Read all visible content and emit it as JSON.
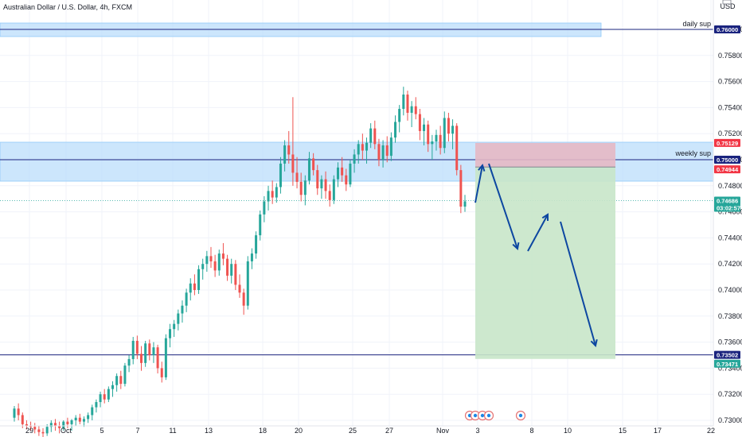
{
  "header": {
    "symbol_title": "Australian Dollar / U.S. Dollar, 4h, FXCM",
    "currency_unit": "USD"
  },
  "chart_data": {
    "type": "candlestick",
    "title": "Australian Dollar / U.S. Dollar, 4h, FXCM",
    "xlabel": "",
    "ylabel": "",
    "ylim": [
      0.7298,
      0.762
    ],
    "grid": true,
    "y_ticks": [
      "0.76000",
      "0.75800",
      "0.75600",
      "0.75400",
      "0.75200",
      "0.75000",
      "0.74800",
      "0.74600",
      "0.74400",
      "0.74200",
      "0.74000",
      "0.73800",
      "0.73600",
      "0.73400",
      "0.73200",
      "0.73000"
    ],
    "x_ticks": [
      "29",
      "Oct",
      "5",
      "7",
      "11",
      "13",
      "18",
      "20",
      "25",
      "27",
      "Nov",
      "3",
      "8",
      "10",
      "15",
      "17",
      "22"
    ],
    "series": [
      {
        "name": "",
        "values": [
          [
            0.7302,
            0.7311,
            0.7299,
            0.7309
          ],
          [
            0.7309,
            0.7313,
            0.73,
            0.7304
          ],
          [
            0.7304,
            0.7306,
            0.7294,
            0.7297
          ],
          [
            0.7297,
            0.73,
            0.7293,
            0.7296
          ],
          [
            0.7296,
            0.7299,
            0.7292,
            0.7295
          ],
          [
            0.7295,
            0.7298,
            0.729,
            0.7293
          ],
          [
            0.7293,
            0.7296,
            0.7288,
            0.7291
          ],
          [
            0.7291,
            0.7294,
            0.7287,
            0.729
          ],
          [
            0.729,
            0.7297,
            0.7288,
            0.7295
          ],
          [
            0.7295,
            0.73,
            0.7291,
            0.7298
          ],
          [
            0.7298,
            0.7301,
            0.7292,
            0.7296
          ],
          [
            0.7296,
            0.7299,
            0.729,
            0.7294
          ],
          [
            0.7294,
            0.73,
            0.7292,
            0.7299
          ],
          [
            0.7299,
            0.7302,
            0.7294,
            0.7297
          ],
          [
            0.7297,
            0.7301,
            0.7292,
            0.73
          ],
          [
            0.73,
            0.7304,
            0.7296,
            0.7302
          ],
          [
            0.7302,
            0.7305,
            0.7297,
            0.7299
          ],
          [
            0.7299,
            0.7303,
            0.7295,
            0.7301
          ],
          [
            0.7301,
            0.7306,
            0.7298,
            0.7304
          ],
          [
            0.7304,
            0.7312,
            0.73,
            0.731
          ],
          [
            0.731,
            0.7316,
            0.7306,
            0.7314
          ],
          [
            0.7314,
            0.7322,
            0.731,
            0.732
          ],
          [
            0.732,
            0.7324,
            0.7313,
            0.7316
          ],
          [
            0.7316,
            0.7326,
            0.7314,
            0.7324
          ],
          [
            0.7324,
            0.733,
            0.7318,
            0.7327
          ],
          [
            0.7327,
            0.7336,
            0.7322,
            0.7334
          ],
          [
            0.7334,
            0.7338,
            0.7324,
            0.7328
          ],
          [
            0.7328,
            0.7344,
            0.7326,
            0.7342
          ],
          [
            0.7342,
            0.735,
            0.7337,
            0.7347
          ],
          [
            0.7347,
            0.7364,
            0.7343,
            0.7361
          ],
          [
            0.7361,
            0.7365,
            0.7347,
            0.7351
          ],
          [
            0.7351,
            0.7357,
            0.7338,
            0.7344
          ],
          [
            0.7344,
            0.7361,
            0.7341,
            0.7359
          ],
          [
            0.7359,
            0.7362,
            0.7346,
            0.735
          ],
          [
            0.735,
            0.736,
            0.7344,
            0.7356
          ],
          [
            0.7356,
            0.7358,
            0.7336,
            0.734
          ],
          [
            0.734,
            0.7345,
            0.7329,
            0.7333
          ],
          [
            0.7333,
            0.7366,
            0.7331,
            0.7363
          ],
          [
            0.7363,
            0.7374,
            0.7356,
            0.737
          ],
          [
            0.737,
            0.7377,
            0.7364,
            0.7374
          ],
          [
            0.7374,
            0.7385,
            0.7369,
            0.7382
          ],
          [
            0.7382,
            0.7392,
            0.7375,
            0.7388
          ],
          [
            0.7388,
            0.7401,
            0.7383,
            0.7398
          ],
          [
            0.7398,
            0.7409,
            0.7392,
            0.7405
          ],
          [
            0.7405,
            0.7412,
            0.7396,
            0.74
          ],
          [
            0.74,
            0.7419,
            0.7397,
            0.7416
          ],
          [
            0.7416,
            0.7424,
            0.7408,
            0.742
          ],
          [
            0.742,
            0.743,
            0.7414,
            0.7426
          ],
          [
            0.7426,
            0.7433,
            0.7417,
            0.7422
          ],
          [
            0.7422,
            0.7427,
            0.741,
            0.7415
          ],
          [
            0.7415,
            0.7431,
            0.7411,
            0.7428
          ],
          [
            0.7428,
            0.7436,
            0.7419,
            0.7424
          ],
          [
            0.7424,
            0.7427,
            0.7407,
            0.7411
          ],
          [
            0.7411,
            0.7424,
            0.7405,
            0.742
          ],
          [
            0.742,
            0.7423,
            0.74,
            0.7404
          ],
          [
            0.7404,
            0.7412,
            0.7394,
            0.7398
          ],
          [
            0.7398,
            0.7401,
            0.7381,
            0.7388
          ],
          [
            0.7388,
            0.7426,
            0.7385,
            0.7422
          ],
          [
            0.7422,
            0.7432,
            0.7416,
            0.7428
          ],
          [
            0.7428,
            0.7445,
            0.7424,
            0.7442
          ],
          [
            0.7442,
            0.7461,
            0.7438,
            0.7458
          ],
          [
            0.7458,
            0.7472,
            0.7452,
            0.7468
          ],
          [
            0.7468,
            0.748,
            0.7461,
            0.7476
          ],
          [
            0.7476,
            0.7484,
            0.7466,
            0.7471
          ],
          [
            0.7471,
            0.7482,
            0.7467,
            0.7479
          ],
          [
            0.7479,
            0.7502,
            0.7474,
            0.7497
          ],
          [
            0.7497,
            0.7515,
            0.7491,
            0.7511
          ],
          [
            0.7511,
            0.7522,
            0.7497,
            0.7504
          ],
          [
            0.7504,
            0.7548,
            0.748,
            0.749
          ],
          [
            0.749,
            0.7502,
            0.7478,
            0.7483
          ],
          [
            0.7483,
            0.749,
            0.7468,
            0.7473
          ],
          [
            0.7473,
            0.7488,
            0.7465,
            0.7484
          ],
          [
            0.7484,
            0.7506,
            0.7481,
            0.7501
          ],
          [
            0.7501,
            0.7505,
            0.7488,
            0.7492
          ],
          [
            0.7492,
            0.7496,
            0.7473,
            0.7478
          ],
          [
            0.7478,
            0.7488,
            0.747,
            0.7485
          ],
          [
            0.7485,
            0.7491,
            0.747,
            0.7476
          ],
          [
            0.7476,
            0.7481,
            0.7464,
            0.7469
          ],
          [
            0.7469,
            0.7488,
            0.7466,
            0.7485
          ],
          [
            0.7485,
            0.7498,
            0.7479,
            0.7494
          ],
          [
            0.7494,
            0.7502,
            0.7483,
            0.7488
          ],
          [
            0.7488,
            0.7493,
            0.7476,
            0.7481
          ],
          [
            0.7481,
            0.75,
            0.7479,
            0.7497
          ],
          [
            0.7497,
            0.7508,
            0.749,
            0.7504
          ],
          [
            0.7504,
            0.7515,
            0.7497,
            0.7512
          ],
          [
            0.7512,
            0.752,
            0.75,
            0.7507
          ],
          [
            0.7507,
            0.7517,
            0.7497,
            0.7513
          ],
          [
            0.7513,
            0.7528,
            0.7509,
            0.7524
          ],
          [
            0.7524,
            0.753,
            0.7508,
            0.7512
          ],
          [
            0.7512,
            0.7516,
            0.7495,
            0.75
          ],
          [
            0.75,
            0.7515,
            0.7494,
            0.7511
          ],
          [
            0.7511,
            0.7518,
            0.7498,
            0.7503
          ],
          [
            0.7503,
            0.7521,
            0.7499,
            0.7517
          ],
          [
            0.7517,
            0.7534,
            0.7513,
            0.7529
          ],
          [
            0.7529,
            0.7542,
            0.7521,
            0.7539
          ],
          [
            0.7539,
            0.7556,
            0.7534,
            0.755
          ],
          [
            0.755,
            0.7553,
            0.753,
            0.7536
          ],
          [
            0.7536,
            0.7545,
            0.7525,
            0.7541
          ],
          [
            0.7541,
            0.7548,
            0.7531,
            0.7535
          ],
          [
            0.7535,
            0.7539,
            0.7515,
            0.7522
          ],
          [
            0.7522,
            0.7532,
            0.7511,
            0.7527
          ],
          [
            0.7527,
            0.753,
            0.7506,
            0.7512
          ],
          [
            0.7512,
            0.7519,
            0.75,
            0.7514
          ],
          [
            0.7514,
            0.7523,
            0.7507,
            0.7519
          ],
          [
            0.7519,
            0.7526,
            0.7504,
            0.7509
          ],
          [
            0.7509,
            0.7537,
            0.7505,
            0.7532
          ],
          [
            0.7532,
            0.7536,
            0.7514,
            0.752
          ],
          [
            0.752,
            0.7531,
            0.7508,
            0.7526
          ],
          [
            0.7526,
            0.7528,
            0.7488,
            0.7492
          ],
          [
            0.7492,
            0.7496,
            0.7459,
            0.7464
          ],
          [
            0.7464,
            0.7473,
            0.746,
            0.7468
          ]
        ]
      }
    ],
    "price_tags": [
      {
        "text": "0.76000",
        "color": "#1a237e"
      },
      {
        "text": "0.75129",
        "color": "#f23645"
      },
      {
        "text": "0.75000",
        "color": "#1a237e"
      },
      {
        "text": "0.74944",
        "color": "#f23645"
      },
      {
        "text": "0.74686",
        "color": "#26a69a"
      },
      {
        "text": "03:02:57",
        "color": "#26a69a"
      },
      {
        "text": "0.73502",
        "color": "#1a237e"
      },
      {
        "text": "0.73471",
        "color": "#26a69a"
      }
    ],
    "annotations": {
      "daily_sup": {
        "label": "daily sup",
        "price": 0.76
      },
      "weekly_sup": {
        "label": "weekly sup",
        "price": 0.75
      },
      "entry": 0.74944,
      "stop_loss": 0.75129,
      "take_profit": 0.73471,
      "target_line": 0.73502,
      "current_price": 0.74686
    },
    "colors": {
      "up": "#26a69a",
      "down": "#ef5350",
      "zone_fill": "#bbdefb",
      "line": "#1a237e",
      "arrow": "#0d47a1",
      "stop_zone": "#e6b8c4",
      "profit_zone": "#c8e6c9"
    }
  }
}
